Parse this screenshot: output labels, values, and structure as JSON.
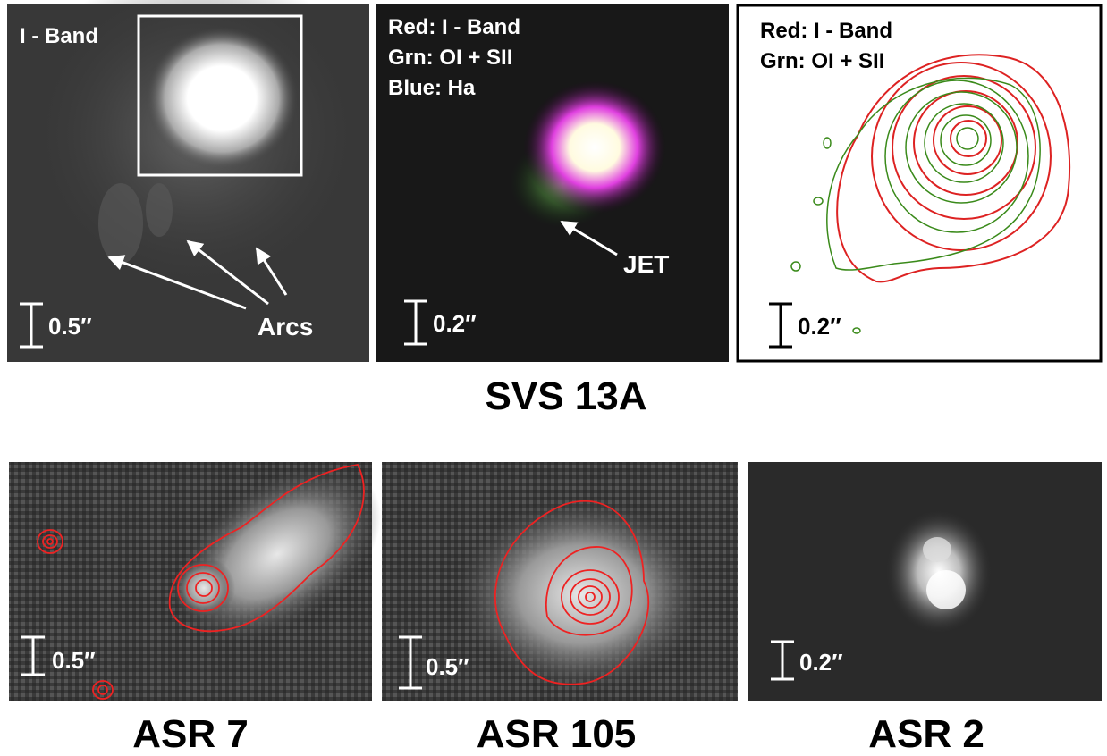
{
  "figure": {
    "top_title": "SVS 13A",
    "panels": [
      {
        "lines": [
          "I - Band"
        ],
        "scale": "0.5″",
        "annotation": "Arcs"
      },
      {
        "lines": [
          "Red: I - Band",
          "Grn: OI + SII",
          "Blue: Ha"
        ],
        "scale": "0.2″",
        "annotation": "JET"
      },
      {
        "lines": [
          "Red: I - Band",
          "Grn: OI + SII"
        ],
        "scale": "0.2″"
      },
      {
        "title": "ASR 7",
        "scale": "0.5″"
      },
      {
        "title": "ASR 105",
        "scale": "0.5″"
      },
      {
        "title": "ASR 2",
        "scale": "0.2″"
      }
    ]
  }
}
